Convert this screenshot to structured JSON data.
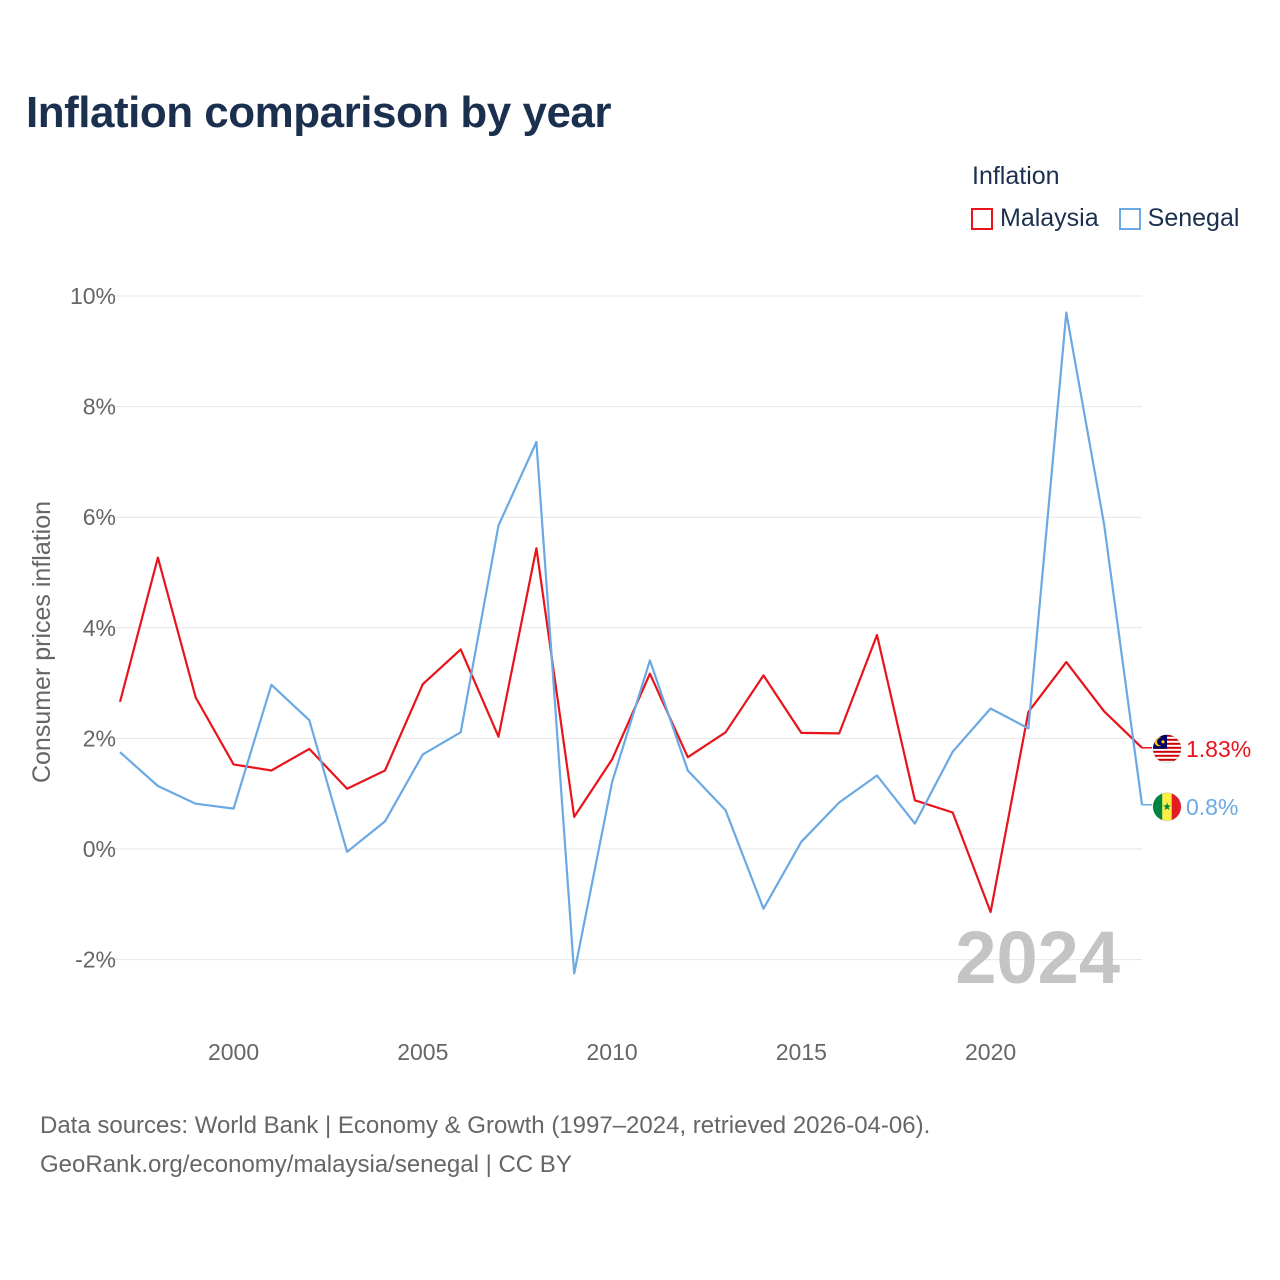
{
  "chart_data": {
    "type": "line",
    "title": "Inflation comparison by year",
    "legend_title": "Inflation",
    "ylabel": "Consumer prices inflation",
    "xlabel": "",
    "ylim": [
      -2.5,
      10
    ],
    "yticks": [
      -2,
      0,
      2,
      4,
      6,
      8,
      10
    ],
    "ytick_labels": [
      "-2%",
      "0%",
      "2%",
      "4%",
      "6%",
      "8%",
      "10%"
    ],
    "xlim": [
      1997,
      2024
    ],
    "xticks": [
      2000,
      2005,
      2010,
      2015,
      2020
    ],
    "xtick_labels": [
      "2000",
      "2005",
      "2010",
      "2015",
      "2020"
    ],
    "year_watermark": "2024",
    "x": [
      1997,
      1998,
      1999,
      2000,
      2001,
      2002,
      2003,
      2004,
      2005,
      2006,
      2007,
      2008,
      2009,
      2010,
      2011,
      2012,
      2013,
      2014,
      2015,
      2016,
      2017,
      2018,
      2019,
      2020,
      2021,
      2022,
      2023,
      2024
    ],
    "series": [
      {
        "name": "Malaysia",
        "color": "#e8131b",
        "end_label": "1.83%",
        "flag": "malaysia-flag-icon",
        "values": [
          2.66,
          5.27,
          2.74,
          1.53,
          1.42,
          1.81,
          1.09,
          1.42,
          2.98,
          3.61,
          2.03,
          5.44,
          0.58,
          1.62,
          3.17,
          1.66,
          2.11,
          3.14,
          2.1,
          2.09,
          3.87,
          0.88,
          0.66,
          -1.14,
          2.48,
          3.38,
          2.49,
          1.83
        ]
      },
      {
        "name": "Senegal",
        "color": "#6aa9e3",
        "end_label": "0.8%",
        "flag": "senegal-flag-icon",
        "values": [
          1.75,
          1.14,
          0.82,
          0.73,
          2.97,
          2.33,
          -0.05,
          0.5,
          1.71,
          2.11,
          5.85,
          7.36,
          -2.25,
          1.21,
          3.41,
          1.42,
          0.7,
          -1.08,
          0.13,
          0.84,
          1.33,
          0.46,
          1.76,
          2.54,
          2.18,
          9.7,
          5.87,
          0.8
        ]
      }
    ]
  },
  "footer": {
    "line1": "Data sources: World Bank | Economy & Growth (1997–2024, retrieved 2026-04-06).",
    "line2": "GeoRank.org/economy/malaysia/senegal | CC BY"
  }
}
